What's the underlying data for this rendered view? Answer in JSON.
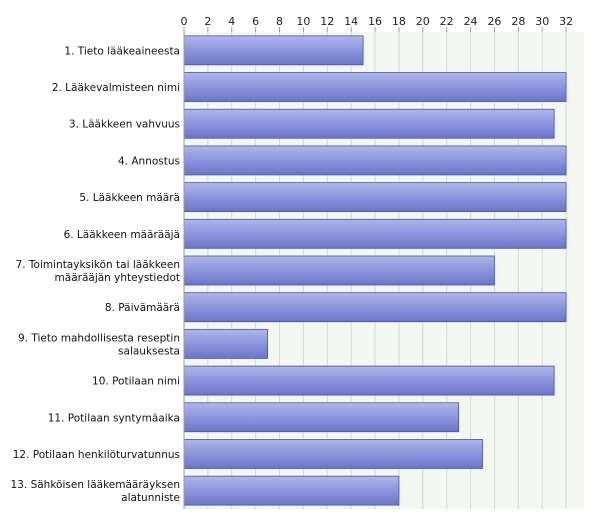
{
  "chart_data": {
    "type": "bar",
    "orientation": "horizontal",
    "categories": [
      [
        "1. Tieto lääkeaineesta"
      ],
      [
        "2. Lääkevalmisteen nimi"
      ],
      [
        "3. Lääkkeen vahvuus"
      ],
      [
        "4. Annostus"
      ],
      [
        "5. Lääkkeen määrä"
      ],
      [
        "6. Lääkkeen määrääjä"
      ],
      [
        "7. Toimintayksikön tai lääkkeen",
        "määrääjän yhteystiedot"
      ],
      [
        "8. Päivämäärä"
      ],
      [
        "9. Tieto mahdollisesta reseptin",
        "salauksesta"
      ],
      [
        "10. Potilaan nimi"
      ],
      [
        "11. Potilaan syntymäaika"
      ],
      [
        "12. Potilaan henkilöturvatunnus"
      ],
      [
        "13. Sähköisen lääkemääräyksen",
        "alatunniste"
      ]
    ],
    "values": [
      15,
      32,
      31,
      32,
      32,
      32,
      26,
      32,
      7,
      31,
      23,
      25,
      18
    ],
    "xticks": [
      0,
      2,
      4,
      6,
      8,
      10,
      12,
      14,
      16,
      18,
      20,
      22,
      24,
      26,
      28,
      30,
      32
    ],
    "xlim": [
      0,
      33.5
    ],
    "axis_position": "top",
    "grid": true,
    "title": "",
    "xlabel": "",
    "ylabel": "",
    "colors": {
      "bar_top": "#aeb6ea",
      "bar_mid": "#8792dc",
      "bar_bottom": "#6a75c6",
      "bar_border": "#4a549e",
      "plot_bg": "#f4f6f2",
      "grid": "#d6dad2",
      "axis": "#9a9a9a"
    }
  }
}
